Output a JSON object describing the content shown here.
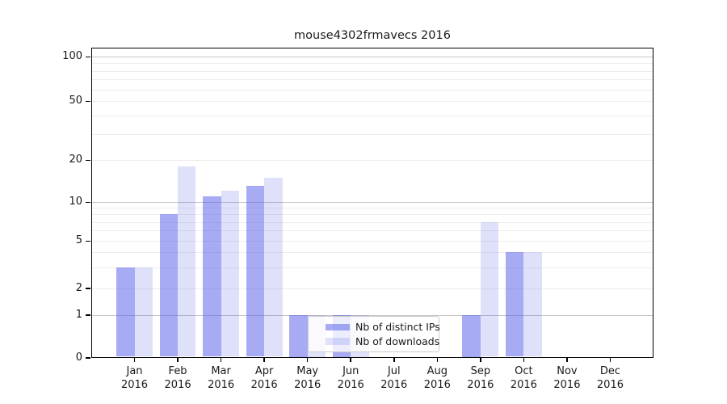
{
  "title": "mouse4302frmavecs 2016",
  "colors": {
    "bar_distinct_ips": "rgba(80,88,232,0.5)",
    "bar_downloads": "rgba(80,88,232,0.18)",
    "grid_major": "#c6c6c6",
    "grid_minor": "#ededed",
    "axis": "#000000",
    "text": "#1a1a1a",
    "legend_border": "#cccccc",
    "legend_bg": "rgba(255,255,255,0.8)"
  },
  "legend": {
    "items": [
      {
        "label": "Nb of distinct IPs",
        "series": "ips"
      },
      {
        "label": "Nb of downloads",
        "series": "downloads"
      }
    ]
  },
  "chart_data": {
    "type": "bar",
    "title": "mouse4302frmavecs 2016",
    "x_categories": [
      "Jan",
      "Feb",
      "Mar",
      "Apr",
      "May",
      "Jun",
      "Jul",
      "Aug",
      "Sep",
      "Oct",
      "Nov",
      "Dec"
    ],
    "x_year": "2016",
    "series": [
      {
        "name": "Nb of distinct IPs",
        "values": [
          3,
          8,
          11,
          13,
          1,
          1,
          0,
          0,
          1,
          4,
          0,
          0
        ]
      },
      {
        "name": "Nb of downloads",
        "values": [
          3,
          18,
          12,
          15,
          1,
          1,
          0,
          0,
          7,
          4,
          0,
          0
        ]
      }
    ],
    "y_ticks": [
      0,
      1,
      2,
      5,
      10,
      20,
      50,
      100
    ],
    "y_major_gridlines": [
      1,
      10,
      100
    ],
    "y_minor_gridlines": [
      2,
      3,
      4,
      5,
      6,
      7,
      8,
      9,
      20,
      30,
      40,
      50,
      60,
      70,
      80,
      90
    ],
    "y_scale": "symlog",
    "ylim": [
      0,
      130
    ],
    "grid": true,
    "legend_position": "lower center-left"
  }
}
